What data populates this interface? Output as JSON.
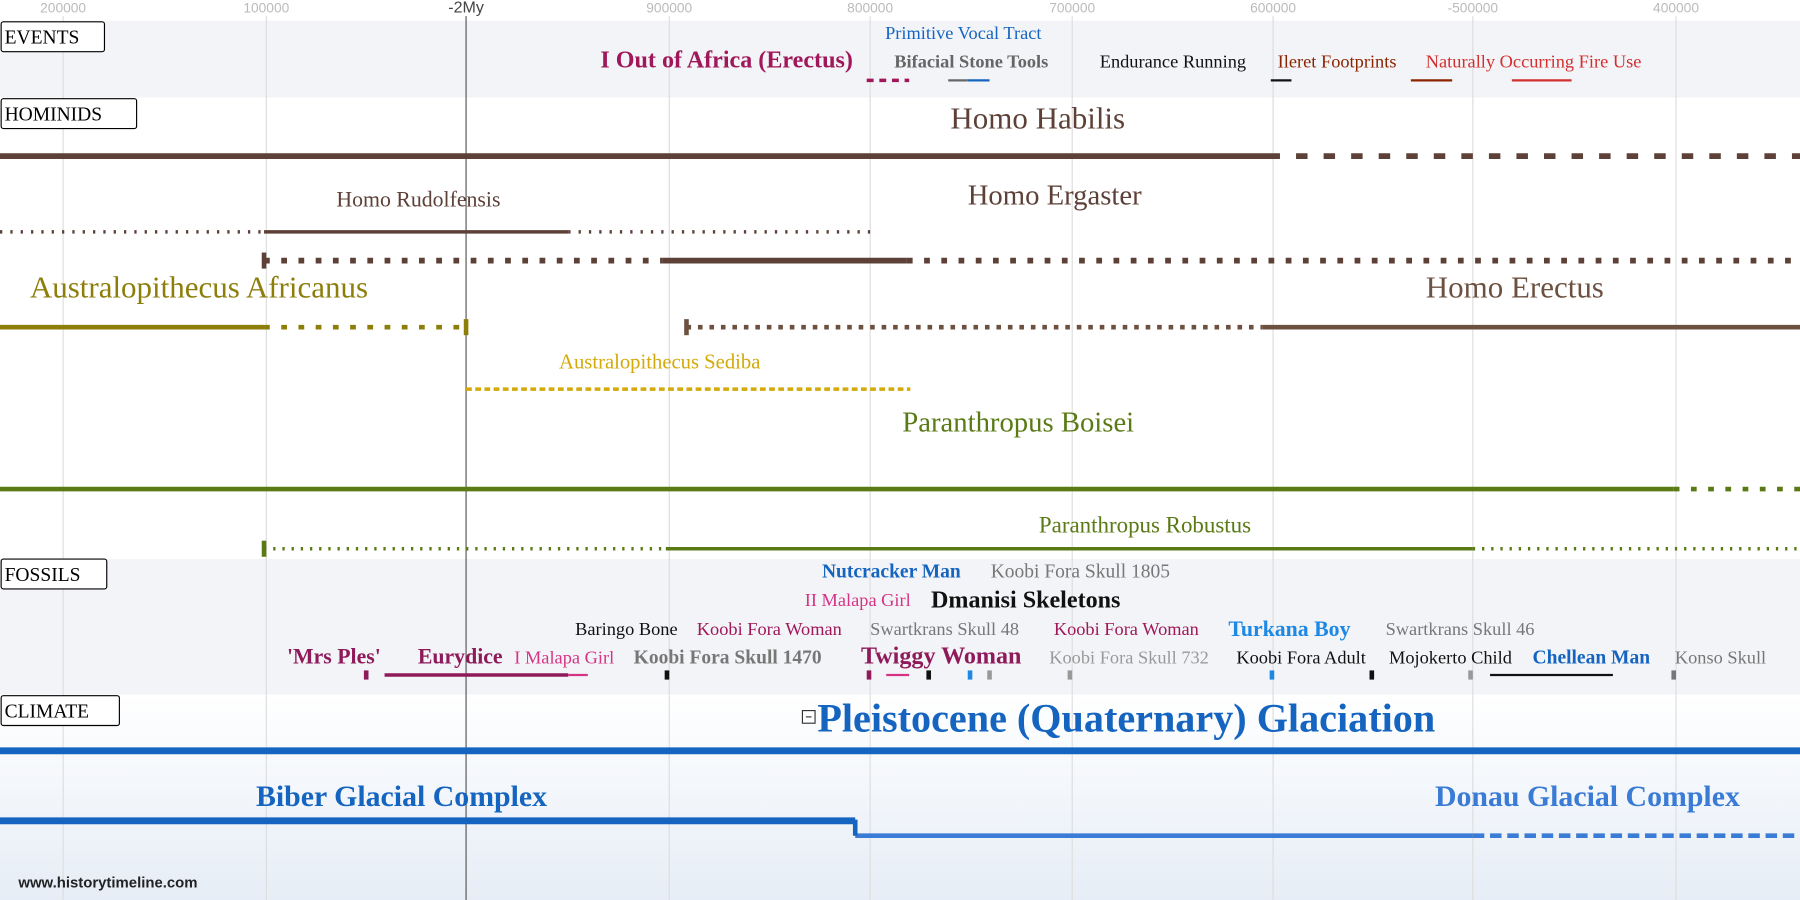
{
  "axis": {
    "labels": [
      "200000",
      "100000",
      "-2My",
      "900000",
      "800000",
      "700000",
      "600000",
      "-500000",
      "400000"
    ]
  },
  "sections": [
    "EVENTS",
    "HOMINIDS",
    "FOSSILS",
    "CLIMATE"
  ],
  "events": [
    "Primitive Vocal Tract",
    "I Out of Africa (Erectus)",
    "Bifacial Stone Tools",
    "Endurance Running",
    "Ileret Footprints",
    "Naturally Occurring Fire Use"
  ],
  "hominids": [
    "Homo Habilis",
    "Homo Rudolfensis",
    "Homo Ergaster",
    "Australopithecus Africanus",
    "Homo Erectus",
    "Australopithecus Sediba",
    "Paranthropus Boisei",
    "Paranthropus Robustus"
  ],
  "fossils": [
    [
      "Nutcracker Man",
      "Koobi Fora Skull 1805"
    ],
    [
      "II Malapa Girl",
      "Dmanisi Skeletons"
    ],
    [
      "Baringo Bone",
      "Koobi Fora Woman",
      "Swartkrans Skull 48",
      "Koobi Fora Woman",
      "Turkana Boy",
      "Swartkrans Skull 46"
    ],
    [
      "'Mrs Ples'",
      "Eurydice",
      "I Malapa Girl",
      "Koobi Fora Skull 1470",
      "Twiggy Woman",
      "Koobi Fora Skull 732",
      "Koobi Fora Adult",
      "Mojokerto Child",
      "Chellean Man",
      "Konso Skull"
    ]
  ],
  "climate": [
    "Pleistocene (Quaternary) Glaciation",
    "Biber Glacial Complex",
    "Donau Glacial Complex"
  ],
  "footer": "www.historytimeline.com"
}
